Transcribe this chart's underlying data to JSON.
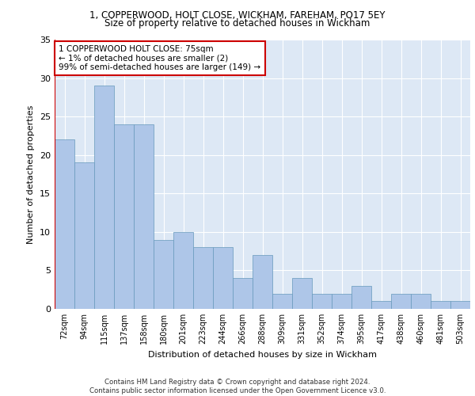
{
  "title1": "1, COPPERWOOD, HOLT CLOSE, WICKHAM, FAREHAM, PO17 5EY",
  "title2": "Size of property relative to detached houses in Wickham",
  "xlabel": "Distribution of detached houses by size in Wickham",
  "ylabel": "Number of detached properties",
  "categories": [
    "72sqm",
    "94sqm",
    "115sqm",
    "137sqm",
    "158sqm",
    "180sqm",
    "201sqm",
    "223sqm",
    "244sqm",
    "266sqm",
    "288sqm",
    "309sqm",
    "331sqm",
    "352sqm",
    "374sqm",
    "395sqm",
    "417sqm",
    "438sqm",
    "460sqm",
    "481sqm",
    "503sqm"
  ],
  "values": [
    22,
    19,
    29,
    24,
    24,
    9,
    10,
    8,
    8,
    4,
    7,
    2,
    4,
    2,
    2,
    3,
    1,
    2,
    2,
    1,
    1
  ],
  "bar_color": "#aec6e8",
  "bar_edge_color": "#6699bb",
  "highlight_edge_color": "#cc0000",
  "annotation_text": "1 COPPERWOOD HOLT CLOSE: 75sqm\n← 1% of detached houses are smaller (2)\n99% of semi-detached houses are larger (149) →",
  "annotation_box_edge": "#cc0000",
  "background_color": "#dde8f5",
  "ylim": [
    0,
    35
  ],
  "yticks": [
    0,
    5,
    10,
    15,
    20,
    25,
    30,
    35
  ],
  "footer": "Contains HM Land Registry data © Crown copyright and database right 2024.\nContains public sector information licensed under the Open Government Licence v3.0."
}
